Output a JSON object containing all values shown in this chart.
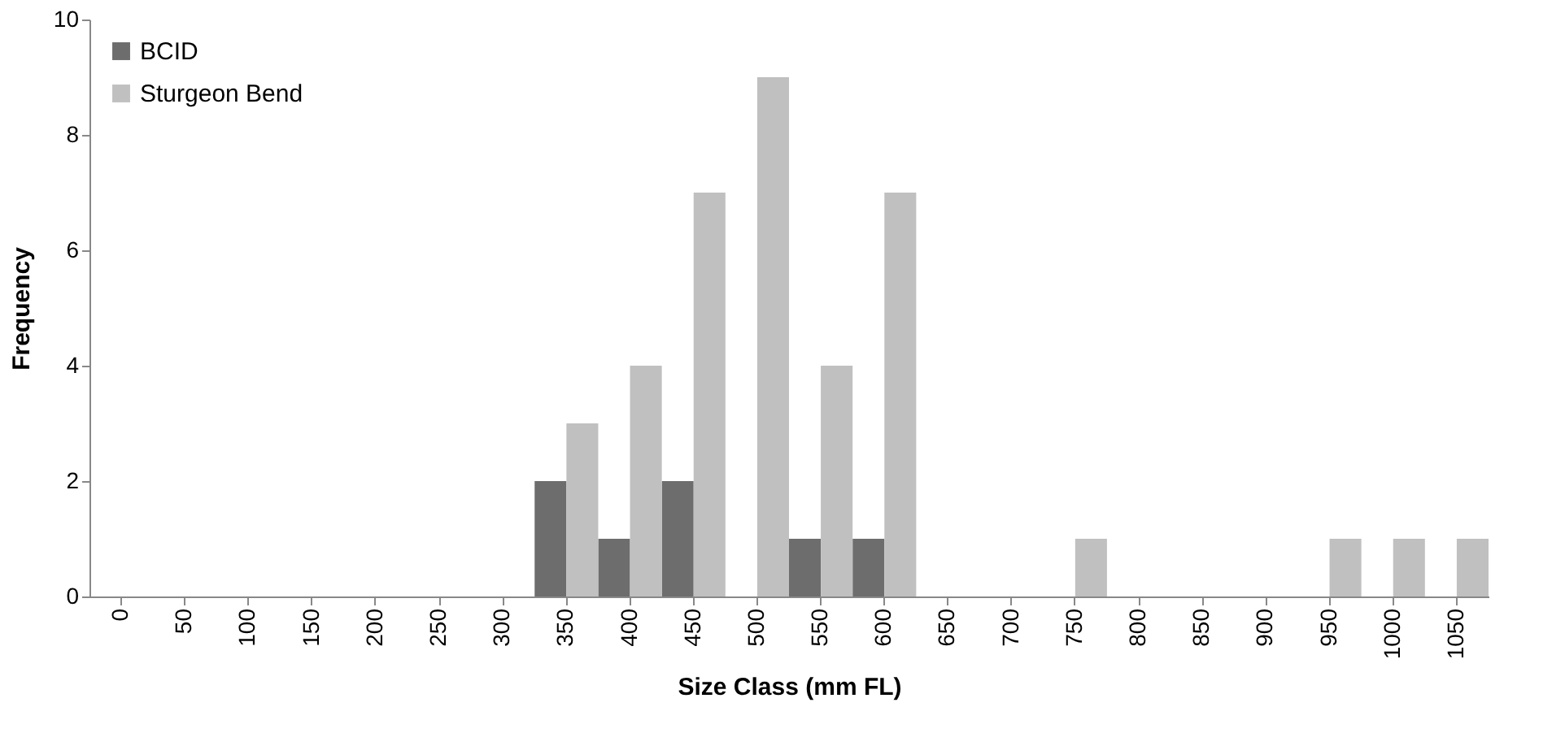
{
  "chart_data": {
    "type": "bar",
    "xlabel": "Size Class (mm FL)",
    "ylabel": "Frequency",
    "categories": [
      "0",
      "50",
      "100",
      "150",
      "200",
      "250",
      "300",
      "350",
      "400",
      "450",
      "500",
      "550",
      "600",
      "650",
      "700",
      "750",
      "800",
      "850",
      "900",
      "950",
      "1000",
      "1050"
    ],
    "series": [
      {
        "name": "BCID",
        "color": "#6d6d6d",
        "values": [
          0,
          0,
          0,
          0,
          0,
          0,
          0,
          2,
          1,
          2,
          0,
          1,
          1,
          0,
          0,
          0,
          0,
          0,
          0,
          0,
          0,
          0
        ]
      },
      {
        "name": "Sturgeon Bend",
        "color": "#c0c0c0",
        "values": [
          0,
          0,
          0,
          0,
          0,
          0,
          0,
          3,
          4,
          7,
          9,
          4,
          7,
          0,
          0,
          1,
          0,
          0,
          0,
          1,
          1,
          1
        ]
      }
    ],
    "ylim": [
      0,
      10
    ],
    "yticks": [
      0,
      2,
      4,
      6,
      8,
      10
    ],
    "grid": false,
    "legend": "top left"
  }
}
